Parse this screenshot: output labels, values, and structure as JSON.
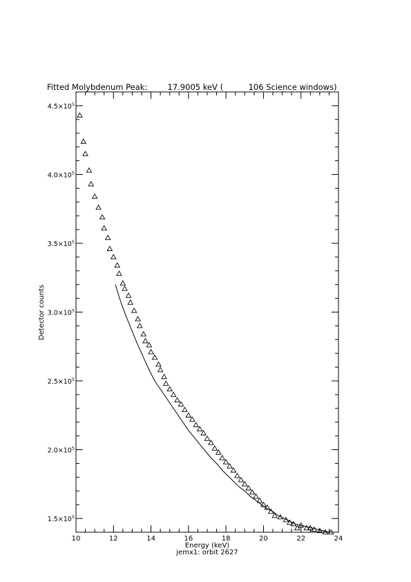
{
  "chart_data": {
    "type": "scatter",
    "title": "Fitted Molybdenum Peak:        17.9005 keV (          106 Science windows)",
    "xlabel": "Energy (keV)",
    "ylabel": "Detector counts",
    "footer": "jemx1: orbit 2627",
    "xlim": [
      10,
      24
    ],
    "ylim": [
      140000,
      460000
    ],
    "x_ticks": [
      10,
      12,
      14,
      16,
      18,
      20,
      22,
      24
    ],
    "y_ticks": [
      {
        "value": 150000,
        "mantissa": "1.5",
        "exp": "5"
      },
      {
        "value": 200000,
        "mantissa": "2.0",
        "exp": "5"
      },
      {
        "value": 250000,
        "mantissa": "2.5",
        "exp": "5"
      },
      {
        "value": 300000,
        "mantissa": "3.0",
        "exp": "5"
      },
      {
        "value": 350000,
        "mantissa": "3.5",
        "exp": "5"
      },
      {
        "value": 400000,
        "mantissa": "4.0",
        "exp": "5"
      },
      {
        "value": 450000,
        "mantissa": "4.5",
        "exp": "5"
      }
    ],
    "marker": "triangle",
    "series": [
      {
        "kind": "points",
        "x": [
          10.2,
          10.4,
          10.5,
          10.7,
          10.8,
          11.0,
          11.2,
          11.4,
          11.5,
          11.7,
          11.8,
          12.0,
          12.2,
          12.3,
          12.5,
          12.6,
          12.8,
          12.9,
          13.1,
          13.3,
          13.4,
          13.6,
          13.7,
          13.9,
          14.0,
          14.2,
          14.4,
          14.5,
          14.7,
          14.8,
          15.0,
          15.2,
          15.4,
          15.6,
          15.8,
          16.0,
          16.2,
          16.4,
          16.6,
          16.8,
          17.0,
          17.2,
          17.4,
          17.6,
          17.8,
          18.0,
          18.2,
          18.4,
          18.6,
          18.8,
          19.0,
          19.2,
          19.4,
          19.6,
          19.8,
          20.0,
          20.2,
          20.4,
          20.6,
          20.9,
          21.2,
          21.4,
          21.6,
          21.8,
          22.0,
          22.3,
          22.5,
          22.7,
          23.0,
          23.3,
          23.6
        ],
        "y": [
          443000,
          424000,
          415000,
          403000,
          393000,
          384000,
          376000,
          369000,
          361000,
          354000,
          346000,
          340000,
          334000,
          328000,
          321000,
          317000,
          312000,
          307000,
          301000,
          295000,
          290000,
          284000,
          279000,
          276000,
          271000,
          267000,
          262000,
          258000,
          253000,
          248000,
          244000,
          240000,
          236000,
          233000,
          229000,
          225000,
          222000,
          218000,
          215000,
          212000,
          208000,
          205000,
          201000,
          198000,
          194000,
          191000,
          188000,
          185000,
          181000,
          178000,
          175000,
          172000,
          169000,
          166000,
          163000,
          160000,
          158000,
          155000,
          152000,
          151000,
          149000,
          147000,
          146000,
          143000,
          145000,
          143000,
          143000,
          142000,
          141000,
          140000,
          140000
        ]
      },
      {
        "kind": "fit",
        "x": [
          12.1,
          12.4,
          12.7,
          13.0,
          13.3,
          13.6,
          13.9,
          14.2,
          14.5,
          14.8,
          15.1,
          15.4,
          15.7,
          16.0,
          16.3,
          16.6,
          16.9,
          17.2,
          17.5,
          17.8,
          18.1,
          18.4,
          18.7,
          19.0,
          19.3,
          19.6,
          19.9,
          20.2,
          20.5,
          20.8,
          21.1,
          21.4,
          21.7,
          22.0,
          22.3,
          22.6,
          22.9,
          23.2,
          23.5
        ],
        "y": [
          320000,
          307000,
          296000,
          286000,
          276000,
          267000,
          258000,
          250000,
          244000,
          238000,
          232000,
          226000,
          220000,
          214000,
          209000,
          204000,
          199000,
          194000,
          190000,
          185000,
          181000,
          177000,
          173000,
          170000,
          166000,
          163000,
          160000,
          157000,
          155000,
          152000,
          150000,
          148000,
          146000,
          145000,
          144000,
          143000,
          142000,
          141000,
          140000
        ]
      }
    ]
  }
}
